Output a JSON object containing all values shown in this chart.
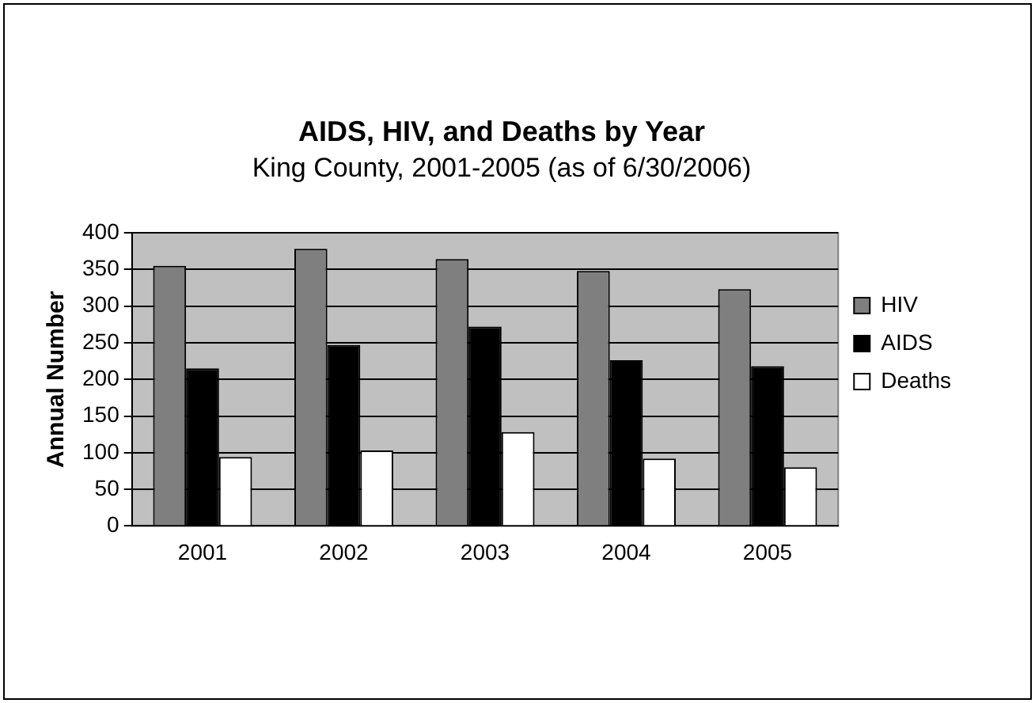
{
  "chart_data": {
    "type": "bar",
    "title": "AIDS, HIV, and Deaths by Year",
    "subtitle": "King County, 2001-2005 (as of 6/30/2006)",
    "ylabel": "Annual Number",
    "categories": [
      "2001",
      "2002",
      "2003",
      "2004",
      "2005"
    ],
    "series": [
      {
        "name": "HIV",
        "color": "#7f7f7f",
        "values": [
          355,
          378,
          364,
          348,
          323
        ]
      },
      {
        "name": "AIDS",
        "color": "#000000",
        "values": [
          215,
          247,
          272,
          226,
          218
        ]
      },
      {
        "name": "Deaths",
        "color": "#ffffff",
        "values": [
          94,
          103,
          128,
          92,
          80
        ]
      }
    ],
    "ylim": [
      0,
      400
    ],
    "yticks": [
      0,
      50,
      100,
      150,
      200,
      250,
      300,
      350,
      400
    ],
    "grid": "y",
    "legend": "right"
  }
}
